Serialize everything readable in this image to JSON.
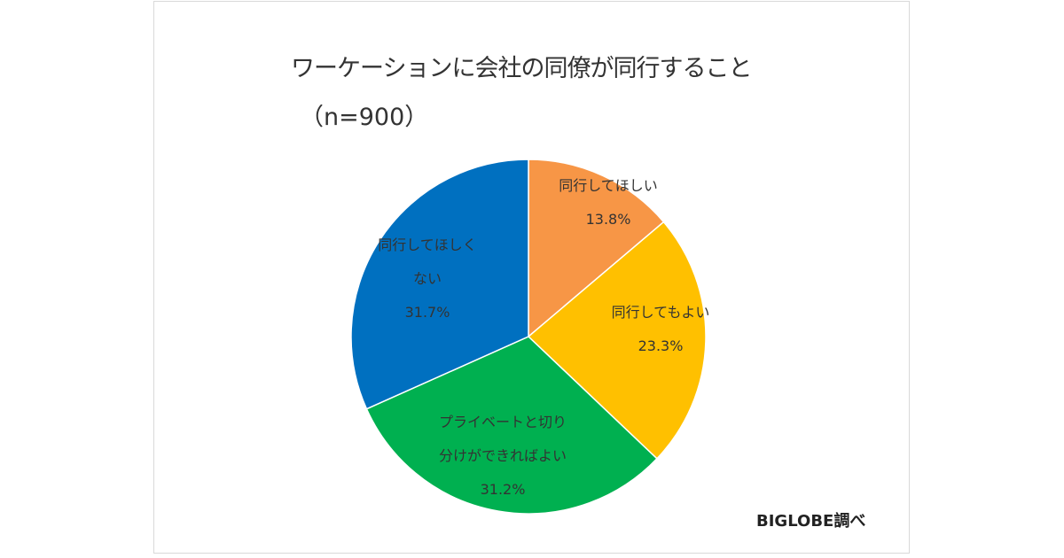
{
  "chart_data": {
    "type": "pie",
    "title": "ワーケーションに会社の同僚が同行すること",
    "subtitle": "（n=900）",
    "start_angle": "top",
    "direction": "clockwise",
    "slices": [
      {
        "label": "同行してほしい",
        "value": 13.8,
        "value_label": "13.8%",
        "color": "#F79646"
      },
      {
        "label": "同行してもよい",
        "value": 23.3,
        "value_label": "23.3%",
        "color": "#FFC000"
      },
      {
        "label": "プライベートと切り分けができればよい",
        "label_lines": [
          "プライベートと切り",
          "分けができればよい"
        ],
        "value": 31.2,
        "value_label": "31.2%",
        "color": "#00B050"
      },
      {
        "label": "同行してほしくない",
        "label_lines": [
          "同行してほしく",
          "ない"
        ],
        "value": 31.7,
        "value_label": "31.7%",
        "color": "#0070C0"
      }
    ],
    "legend": "none"
  },
  "credit": "BIGLOBE調べ"
}
